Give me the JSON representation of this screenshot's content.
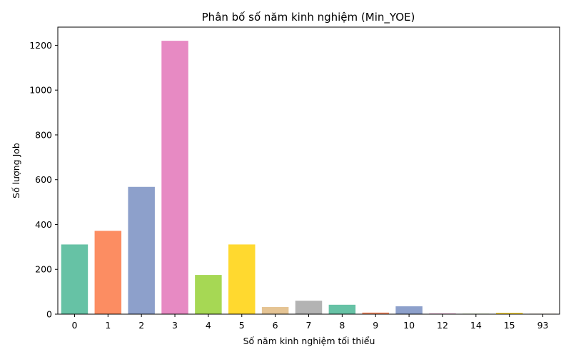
{
  "chart_data": {
    "type": "bar",
    "title": "Phân bố số năm kinh nghiệm (Min_YOE)",
    "xlabel": "Số năm kinh nghiệm tối thiểu",
    "ylabel": "Số lượng Job",
    "categories": [
      "0",
      "1",
      "2",
      "3",
      "4",
      "5",
      "6",
      "7",
      "8",
      "9",
      "10",
      "12",
      "14",
      "15",
      "93"
    ],
    "values": [
      311,
      372,
      568,
      1220,
      175,
      311,
      32,
      60,
      42,
      7,
      35,
      3,
      2,
      6,
      2
    ],
    "colors": [
      "#66c2a5",
      "#fc8d62",
      "#8da0cb",
      "#e78ac3",
      "#a6d854",
      "#ffd92f",
      "#e5c494",
      "#b3b3b3",
      "#66c2a5",
      "#fc8d62",
      "#8da0cb",
      "#e78ac3",
      "#a6d854",
      "#ffd92f",
      "#e5c494"
    ],
    "ylim": [
      0,
      1281
    ],
    "yticks": [
      0,
      200,
      400,
      600,
      800,
      1000,
      1200
    ],
    "grid": false,
    "legend": false
  }
}
